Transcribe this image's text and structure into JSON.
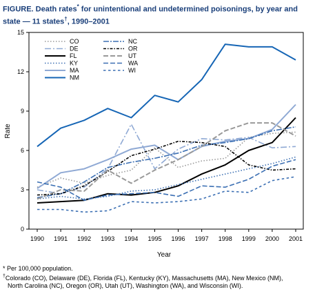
{
  "title": {
    "main": "FIGURE. Death rates",
    "mark1": "*",
    "mid": " for unintentional and undetermined poisonings, by year and state — 11 states",
    "mark2": "†",
    "tail": ", 1990–2001"
  },
  "footnotes": {
    "note1": "* Per 100,000 population.",
    "note2_mark": "†",
    "note2_line1": "Colorado (CO), Delaware (DE), Florida (FL), Kentucky (KY), Massachusetts (MA), New Mexico (NM),",
    "note2_line2": "North Carolina (NC), Oregon (OR), Utah (UT), Washington (WA), and Wisconsin (WI)."
  },
  "colors": {
    "light_blue": "#8fa9d4",
    "medium_blue": "#3b6fb3",
    "dark_blue": "#1565b5",
    "gray": "#999999",
    "black": "#000000"
  },
  "chart_data": {
    "type": "line",
    "xlabel": "Year",
    "ylabel": "Rate",
    "x": [
      1990,
      1991,
      1992,
      1993,
      1994,
      1995,
      1996,
      1997,
      1998,
      1999,
      2000,
      2001
    ],
    "xlim": [
      1990,
      2001
    ],
    "ylim": [
      0,
      15
    ],
    "yticks": [
      0,
      3,
      6,
      9,
      12,
      15
    ],
    "grid": false,
    "legend_position": "top-left",
    "series": [
      {
        "name": "CO",
        "color": "#999999",
        "dash": "1.5,2.5",
        "width": 1.6,
        "values": [
          3.2,
          3.9,
          3.5,
          4.1,
          4.5,
          6.2,
          4.7,
          5.2,
          5.4,
          7.0,
          7.3,
          7.4
        ]
      },
      {
        "name": "DE",
        "color": "#8fa9d4",
        "dash": "9,3,2,3",
        "width": 1.6,
        "values": [
          3.0,
          2.7,
          3.2,
          4.6,
          8.0,
          4.6,
          6.1,
          6.9,
          6.8,
          7.0,
          6.2,
          6.3
        ]
      },
      {
        "name": "FL",
        "color": "#000000",
        "dash": "",
        "width": 2.0,
        "values": [
          2.0,
          2.1,
          2.2,
          2.7,
          2.6,
          2.8,
          3.3,
          4.2,
          4.9,
          6.0,
          6.6,
          8.5
        ]
      },
      {
        "name": "KY",
        "color": "#3b6fb3",
        "dash": "1.5,2.5",
        "width": 1.6,
        "values": [
          2.3,
          2.5,
          2.3,
          2.5,
          2.9,
          3.0,
          3.4,
          3.8,
          4.2,
          4.6,
          5.0,
          5.5
        ]
      },
      {
        "name": "MA",
        "color": "#8fa9d4",
        "dash": "",
        "width": 2.0,
        "values": [
          3.1,
          4.3,
          4.6,
          5.3,
          6.1,
          6.4,
          5.3,
          6.3,
          6.7,
          6.9,
          7.6,
          9.5
        ]
      },
      {
        "name": "NM",
        "color": "#1565b5",
        "dash": "",
        "width": 2.0,
        "values": [
          6.3,
          7.7,
          8.3,
          9.2,
          8.5,
          10.2,
          9.7,
          11.4,
          14.1,
          13.9,
          13.9,
          12.9
        ]
      },
      {
        "name": "NC",
        "color": "#3b6fb3",
        "dash": "8,2,2,2",
        "width": 1.6,
        "values": [
          2.4,
          2.7,
          3.6,
          4.7,
          5.1,
          5.4,
          5.8,
          6.4,
          6.6,
          6.9,
          7.5,
          7.8
        ]
      },
      {
        "name": "OR",
        "color": "#000000",
        "dash": "4,2,1.5,2",
        "width": 1.6,
        "values": [
          2.6,
          2.7,
          3.3,
          4.4,
          5.6,
          6.1,
          6.7,
          6.6,
          6.3,
          4.9,
          4.5,
          4.6
        ]
      },
      {
        "name": "UT",
        "color": "#999999",
        "dash": "7,3",
        "width": 2.0,
        "values": [
          2.3,
          3.0,
          2.9,
          4.5,
          3.5,
          4.5,
          5.3,
          6.3,
          7.5,
          8.1,
          8.1,
          7.1
        ]
      },
      {
        "name": "WA",
        "color": "#3b6fb3",
        "dash": "7,3",
        "width": 1.6,
        "values": [
          3.6,
          3.2,
          2.2,
          2.6,
          2.7,
          2.8,
          2.5,
          3.3,
          3.2,
          3.8,
          4.8,
          5.3
        ]
      },
      {
        "name": "WI",
        "color": "#3b6fb3",
        "dash": "3.5,3.5",
        "width": 1.6,
        "values": [
          1.5,
          1.5,
          1.3,
          1.4,
          2.1,
          2.0,
          2.1,
          2.3,
          2.9,
          2.8,
          3.7,
          4.0
        ]
      }
    ]
  }
}
